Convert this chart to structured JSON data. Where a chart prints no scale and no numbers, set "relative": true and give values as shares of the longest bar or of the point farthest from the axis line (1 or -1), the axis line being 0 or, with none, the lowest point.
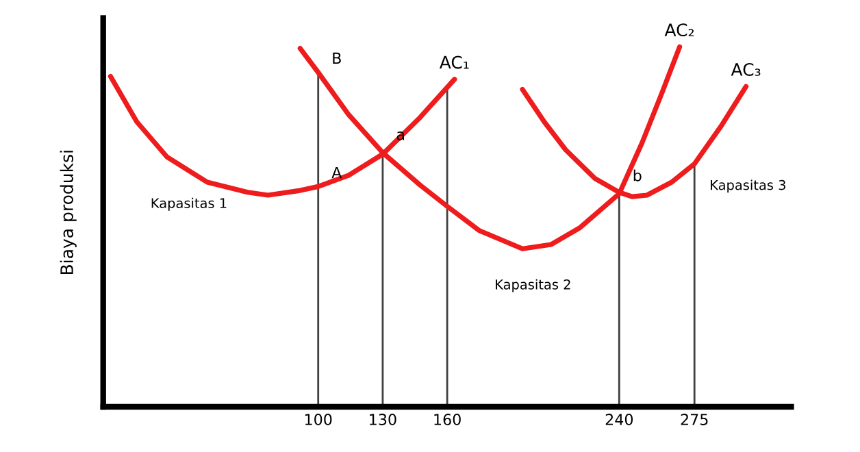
{
  "chart_data": {
    "type": "line",
    "relative": true,
    "ylabel": "Biaya produksi",
    "legend": false,
    "grid": false,
    "tick_labels": "x",
    "marker": "none",
    "xlim": [
      0,
      320
    ],
    "xticks": [
      100,
      130,
      160,
      240,
      275
    ],
    "series": [
      {
        "name": "AC₁",
        "color": "#ee1c1c",
        "x": [
          3.4,
          15.6,
          29.7,
          48.4,
          67.2,
          76.6,
          90.6,
          100,
          114.1,
          130,
          147.4,
          163.4
        ],
        "values": [
          0.918,
          0.792,
          0.694,
          0.624,
          0.596,
          0.588,
          0.6,
          0.612,
          0.643,
          0.702,
          0.804,
          0.91
        ]
      },
      {
        "name": "AC₂",
        "color": "#ee1c1c",
        "x": [
          91.6,
          100,
          114.1,
          130,
          147.4,
          160,
          174.8,
          195,
          208.4,
          221.8,
          240,
          250.6,
          259.8,
          268.1
        ],
        "values": [
          0.996,
          0.929,
          0.812,
          0.706,
          0.616,
          0.557,
          0.49,
          0.439,
          0.451,
          0.498,
          0.592,
          0.733,
          0.871,
          1
        ]
      },
      {
        "name": "AC₃",
        "color": "#ee1c1c",
        "x": [
          195,
          205.1,
          215.1,
          228.6,
          240,
          246,
          252.9,
          264.4,
          275,
          287.4,
          299
        ],
        "values": [
          0.882,
          0.792,
          0.714,
          0.635,
          0.596,
          0.584,
          0.588,
          0.624,
          0.675,
          0.78,
          0.89
        ]
      }
    ],
    "ref_lines": [
      {
        "axis": "x",
        "value": 100,
        "color": "#404040"
      },
      {
        "axis": "x",
        "value": 130,
        "color": "#404040"
      },
      {
        "axis": "x",
        "value": 160,
        "color": "#404040"
      },
      {
        "axis": "x",
        "value": 240,
        "color": "#404040"
      },
      {
        "axis": "x",
        "value": 275,
        "color": "#404040"
      }
    ],
    "annotations": [
      {
        "text": "B",
        "x": 100,
        "y": 0.918
      },
      {
        "text": "A",
        "x": 100,
        "y": 0.6
      },
      {
        "text": "a",
        "x": 130,
        "y": 0.706
      },
      {
        "text": "b",
        "x": 240,
        "y": 0.592
      },
      "Kapasitas 1",
      "Kapasitas 2",
      "Kapasitas 3"
    ]
  }
}
